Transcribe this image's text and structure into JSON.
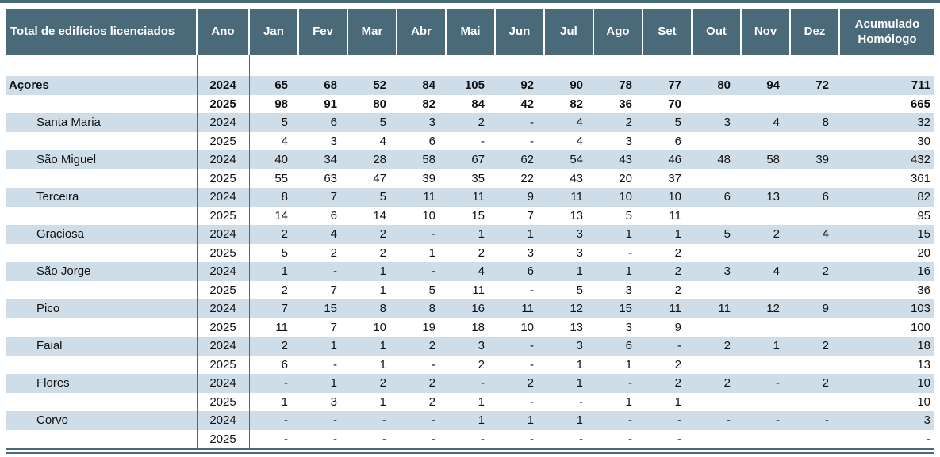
{
  "colors": {
    "header_bg": "#4a6a7a",
    "band_bg": "#cfdde8",
    "rule": "#4a6a7a",
    "header_text": "#ffffff",
    "body_text": "#111111"
  },
  "chart_data": {
    "type": "table",
    "title": "Total de edifícios licenciados",
    "columns": [
      "Ano",
      "Jan",
      "Fev",
      "Mar",
      "Abr",
      "Mai",
      "Jun",
      "Jul",
      "Ago",
      "Set",
      "Out",
      "Nov",
      "Dez",
      "Acumulado Homólogo"
    ],
    "rows": [
      {
        "region": "Açores",
        "year": "2024",
        "bold": true,
        "indent": false,
        "months": [
          "65",
          "68",
          "52",
          "84",
          "105",
          "92",
          "90",
          "78",
          "77",
          "80",
          "94",
          "72"
        ],
        "total": "711"
      },
      {
        "region": "",
        "year": "2025",
        "bold": true,
        "indent": false,
        "months": [
          "98",
          "91",
          "80",
          "82",
          "84",
          "42",
          "82",
          "36",
          "70",
          "",
          "",
          ""
        ],
        "total": "665"
      },
      {
        "region": "Santa Maria",
        "year": "2024",
        "bold": false,
        "indent": true,
        "months": [
          "5",
          "6",
          "5",
          "3",
          "2",
          "-",
          "4",
          "2",
          "5",
          "3",
          "4",
          "8"
        ],
        "total": "32"
      },
      {
        "region": "",
        "year": "2025",
        "bold": false,
        "indent": true,
        "months": [
          "4",
          "3",
          "4",
          "6",
          "-",
          "-",
          "4",
          "3",
          "6",
          "",
          "",
          ""
        ],
        "total": "30"
      },
      {
        "region": "São Miguel",
        "year": "2024",
        "bold": false,
        "indent": true,
        "months": [
          "40",
          "34",
          "28",
          "58",
          "67",
          "62",
          "54",
          "43",
          "46",
          "48",
          "58",
          "39"
        ],
        "total": "432"
      },
      {
        "region": "",
        "year": "2025",
        "bold": false,
        "indent": true,
        "months": [
          "55",
          "63",
          "47",
          "39",
          "35",
          "22",
          "43",
          "20",
          "37",
          "",
          "",
          ""
        ],
        "total": "361"
      },
      {
        "region": "Terceira",
        "year": "2024",
        "bold": false,
        "indent": true,
        "months": [
          "8",
          "7",
          "5",
          "11",
          "11",
          "9",
          "11",
          "10",
          "10",
          "6",
          "13",
          "6"
        ],
        "total": "82"
      },
      {
        "region": "",
        "year": "2025",
        "bold": false,
        "indent": true,
        "months": [
          "14",
          "6",
          "14",
          "10",
          "15",
          "7",
          "13",
          "5",
          "11",
          "",
          "",
          ""
        ],
        "total": "95"
      },
      {
        "region": "Graciosa",
        "year": "2024",
        "bold": false,
        "indent": true,
        "months": [
          "2",
          "4",
          "2",
          "-",
          "1",
          "1",
          "3",
          "1",
          "1",
          "5",
          "2",
          "4"
        ],
        "total": "15"
      },
      {
        "region": "",
        "year": "2025",
        "bold": false,
        "indent": true,
        "months": [
          "5",
          "2",
          "2",
          "1",
          "2",
          "3",
          "3",
          "-",
          "2",
          "",
          "",
          ""
        ],
        "total": "20"
      },
      {
        "region": "São Jorge",
        "year": "2024",
        "bold": false,
        "indent": true,
        "months": [
          "1",
          "-",
          "1",
          "-",
          "4",
          "6",
          "1",
          "1",
          "2",
          "3",
          "4",
          "2"
        ],
        "total": "16"
      },
      {
        "region": "",
        "year": "2025",
        "bold": false,
        "indent": true,
        "months": [
          "2",
          "7",
          "1",
          "5",
          "11",
          "-",
          "5",
          "3",
          "2",
          "",
          "",
          ""
        ],
        "total": "36"
      },
      {
        "region": "Pico",
        "year": "2024",
        "bold": false,
        "indent": true,
        "months": [
          "7",
          "15",
          "8",
          "8",
          "16",
          "11",
          "12",
          "15",
          "11",
          "11",
          "12",
          "9"
        ],
        "total": "103"
      },
      {
        "region": "",
        "year": "2025",
        "bold": false,
        "indent": true,
        "months": [
          "11",
          "7",
          "10",
          "19",
          "18",
          "10",
          "13",
          "3",
          "9",
          "",
          "",
          ""
        ],
        "total": "100"
      },
      {
        "region": "Faial",
        "year": "2024",
        "bold": false,
        "indent": true,
        "months": [
          "2",
          "1",
          "1",
          "2",
          "3",
          "-",
          "3",
          "6",
          "-",
          "2",
          "1",
          "2"
        ],
        "total": "18"
      },
      {
        "region": "",
        "year": "2025",
        "bold": false,
        "indent": true,
        "months": [
          "6",
          "-",
          "1",
          "-",
          "2",
          "-",
          "1",
          "1",
          "2",
          "",
          "",
          ""
        ],
        "total": "13"
      },
      {
        "region": "Flores",
        "year": "2024",
        "bold": false,
        "indent": true,
        "months": [
          "-",
          "1",
          "2",
          "2",
          "-",
          "2",
          "1",
          "-",
          "2",
          "2",
          "-",
          "2"
        ],
        "total": "10"
      },
      {
        "region": "",
        "year": "2025",
        "bold": false,
        "indent": true,
        "months": [
          "1",
          "3",
          "1",
          "2",
          "1",
          "-",
          "-",
          "1",
          "1",
          "",
          "",
          ""
        ],
        "total": "10"
      },
      {
        "region": "Corvo",
        "year": "2024",
        "bold": false,
        "indent": true,
        "months": [
          "-",
          "-",
          "-",
          "-",
          "1",
          "1",
          "1",
          "-",
          "-",
          "-",
          "-",
          "-"
        ],
        "total": "3"
      },
      {
        "region": "",
        "year": "2025",
        "bold": false,
        "indent": true,
        "months": [
          "-",
          "-",
          "-",
          "-",
          "-",
          "-",
          "-",
          "-",
          "-",
          "",
          "",
          ""
        ],
        "total": "-"
      }
    ]
  }
}
